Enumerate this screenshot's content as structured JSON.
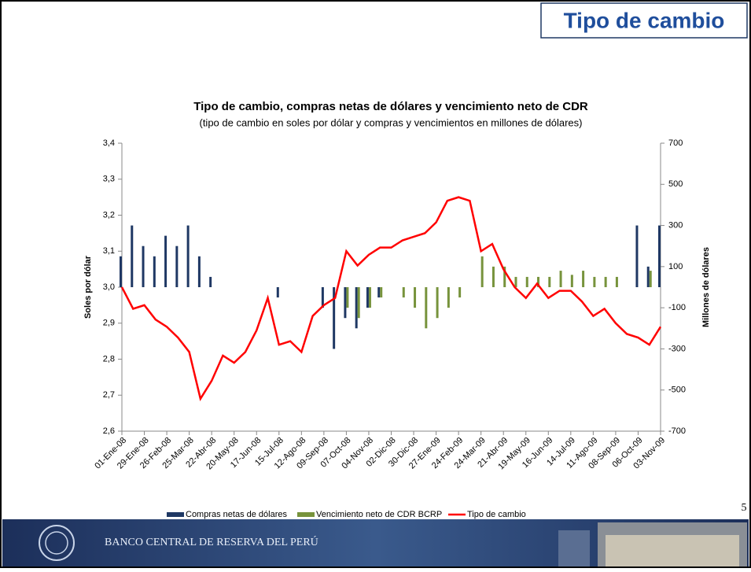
{
  "slide": {
    "title": "Tipo de cambio",
    "page_number": "5",
    "footer": "BANCO CENTRAL DE RESERVA DEL PERÚ"
  },
  "chart_data": {
    "type": "combo",
    "title": "Tipo de cambio, compras netas de dólares y vencimiento neto de CDR",
    "subtitle": "(tipo de cambio en soles por dólar y compras y vencimientos en millones de dólares)",
    "ylabel": "Soles por dólar",
    "y2label": "Millones de dólares",
    "categories": [
      "01-Ene-08",
      null,
      "29-Ene-08",
      null,
      "26-Feb-08",
      null,
      "25-Mar-08",
      null,
      "22-Abr-08",
      null,
      "20-May-08",
      null,
      "17-Jun-08",
      null,
      "15-Jul-08",
      null,
      "12-Ago-08",
      null,
      "09-Sep-08",
      null,
      "07-Oct-08",
      null,
      "04-Nov-08",
      null,
      "02-Dic-08",
      null,
      "30-Dic-08",
      null,
      "27-Ene-09",
      null,
      "24-Feb-09",
      null,
      "24-Mar-09",
      null,
      "21-Abr-09",
      null,
      "19-May-09",
      null,
      "16-Jun-09",
      null,
      "14-Jul-09",
      null,
      "11-Ago-09",
      null,
      "08-Sep-09",
      null,
      "06-Oct-09",
      null,
      "03-Nov-09"
    ],
    "series": [
      {
        "name": "Compras netas de dólares",
        "type": "bar",
        "axis": "y2",
        "color": "#1f3864",
        "values": [
          150,
          300,
          200,
          150,
          250,
          200,
          300,
          150,
          50,
          0,
          0,
          0,
          0,
          0,
          -50,
          0,
          0,
          0,
          -100,
          -300,
          -150,
          -200,
          -100,
          -50,
          0,
          0,
          0,
          0,
          0,
          0,
          0,
          0,
          0,
          0,
          0,
          0,
          0,
          0,
          0,
          0,
          0,
          0,
          0,
          0,
          0,
          0,
          300,
          100,
          300
        ]
      },
      {
        "name": "Vencimiento neto de CDR BCRP",
        "type": "bar",
        "axis": "y2",
        "color": "#77933c",
        "values": [
          0,
          0,
          0,
          0,
          0,
          0,
          0,
          0,
          0,
          0,
          0,
          0,
          0,
          0,
          0,
          0,
          0,
          0,
          0,
          0,
          -100,
          -150,
          -100,
          -50,
          0,
          -50,
          -100,
          -200,
          -150,
          -100,
          -50,
          0,
          150,
          100,
          100,
          50,
          50,
          50,
          50,
          80,
          60,
          80,
          50,
          50,
          50,
          0,
          0,
          80,
          0
        ]
      },
      {
        "name": "Tipo de cambio",
        "type": "line",
        "color": "#ff0000",
        "values": [
          3.0,
          2.94,
          2.95,
          2.91,
          2.89,
          2.86,
          2.82,
          2.69,
          2.74,
          2.81,
          2.79,
          2.82,
          2.88,
          2.97,
          2.84,
          2.85,
          2.82,
          2.92,
          2.95,
          2.97,
          3.1,
          3.06,
          3.09,
          3.11,
          3.11,
          3.13,
          3.14,
          3.15,
          3.18,
          3.24,
          3.25,
          3.24,
          3.1,
          3.12,
          3.05,
          3.0,
          2.97,
          3.01,
          2.97,
          2.99,
          2.99,
          2.96,
          2.92,
          2.94,
          2.9,
          2.87,
          2.86,
          2.84,
          2.89
        ]
      }
    ],
    "ylim": [
      2.6,
      3.4
    ],
    "yticks": [
      {
        "value": 2.6,
        "label": "2,6"
      },
      {
        "value": 2.7,
        "label": "2,7"
      },
      {
        "value": 2.8,
        "label": "2,8"
      },
      {
        "value": 2.9,
        "label": "2,9"
      },
      {
        "value": 3.0,
        "label": "3,0"
      },
      {
        "value": 3.1,
        "label": "3,1"
      },
      {
        "value": 3.2,
        "label": "3,2"
      },
      {
        "value": 3.3,
        "label": "3,3"
      },
      {
        "value": 3.4,
        "label": "3,4"
      }
    ],
    "y2lim": [
      -700,
      700
    ],
    "y2ticks": [
      -700,
      -500,
      -300,
      -100,
      100,
      300,
      500,
      700
    ],
    "grid": false,
    "legend": "bottom"
  }
}
